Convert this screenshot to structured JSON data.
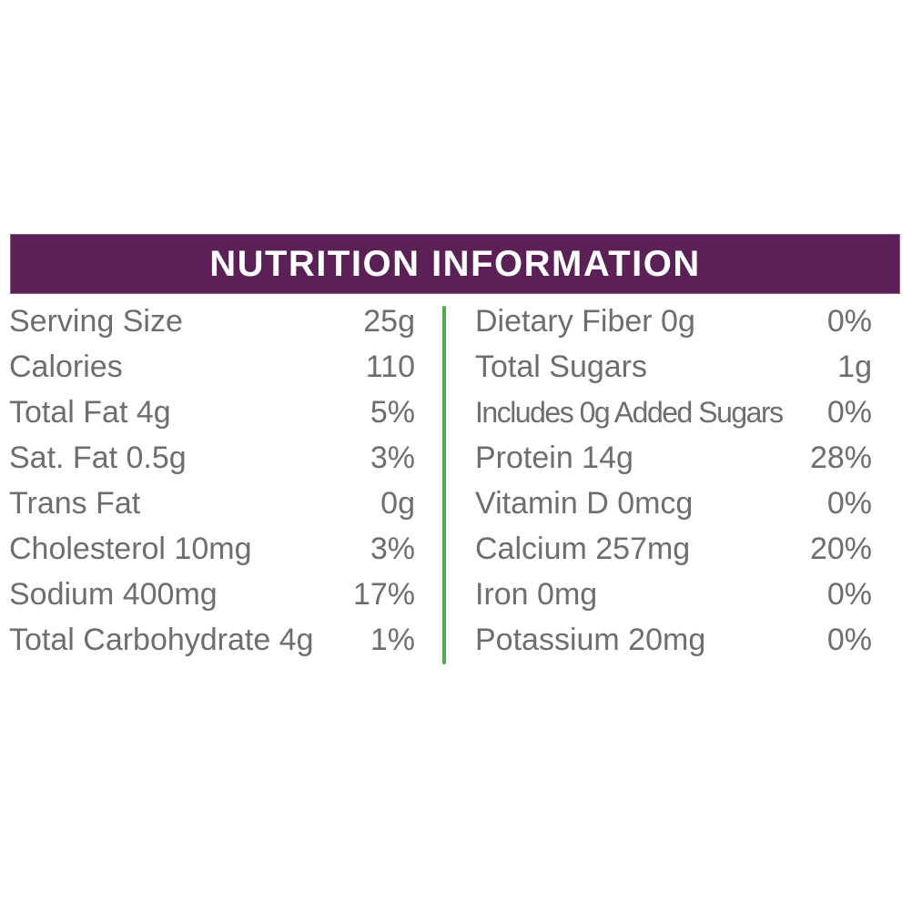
{
  "header": {
    "title": "NUTRITION INFORMATION",
    "bg_color": "#5B2157",
    "text_color": "#FFFFFF"
  },
  "divider_color": "#58A758",
  "text_color": "#6E6E6E",
  "table": {
    "left": {
      "rows": [
        {
          "label": "Serving Size",
          "value": "25g"
        },
        {
          "label": "Calories",
          "value": "110"
        },
        {
          "label": "Total Fat 4g",
          "value": "5%"
        },
        {
          "label": "Sat. Fat 0.5g",
          "value": "3%"
        },
        {
          "label": "Trans Fat",
          "value": "0g"
        },
        {
          "label": "Cholesterol 10mg",
          "value": "3%"
        },
        {
          "label": "Sodium 400mg",
          "value": "17%"
        },
        {
          "label": "Total Carbohydrate 4g",
          "value": "1%"
        }
      ]
    },
    "right": {
      "rows": [
        {
          "label": "Dietary Fiber 0g",
          "value": "0%"
        },
        {
          "label": "Total Sugars",
          "value": "1g"
        },
        {
          "label": "Includes 0g Added Sugars",
          "value": "0%"
        },
        {
          "label": "Protein 14g",
          "value": "28%"
        },
        {
          "label": "Vitamin D 0mcg",
          "value": "0%"
        },
        {
          "label": "Calcium 257mg",
          "value": "20%"
        },
        {
          "label": "Iron 0mg",
          "value": "0%"
        },
        {
          "label": "Potassium 20mg",
          "value": "0%"
        }
      ]
    }
  }
}
